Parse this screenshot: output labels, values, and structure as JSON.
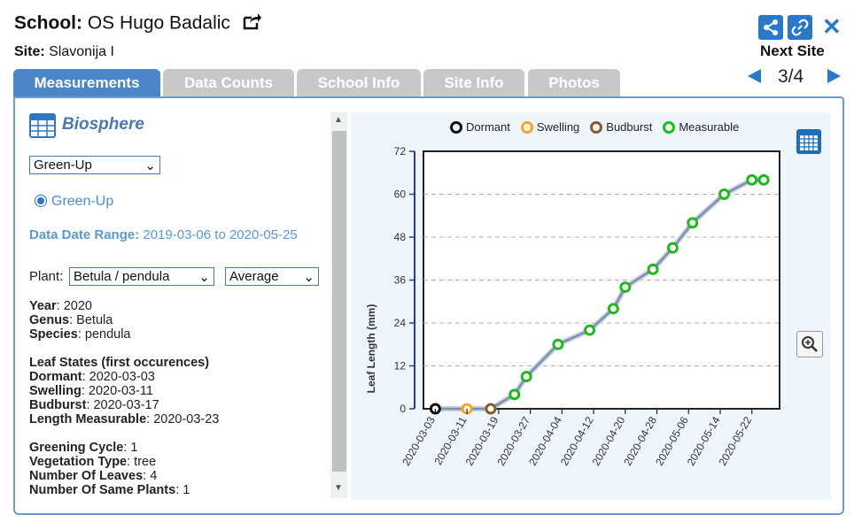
{
  "header": {
    "school_label": "School:",
    "school_name": "OS Hugo Badalic",
    "site_label": "Site:",
    "site_name": "Slavonija I",
    "next_site_label": "Next Site",
    "pager": "3/4"
  },
  "icons": {
    "share": "share-icon",
    "link": "link-icon",
    "close": "close-icon",
    "external": "external-link-icon",
    "table": "table-icon",
    "zoom": "zoom-in-icon"
  },
  "colors": {
    "accent": "#2a78c8",
    "tab_active": "#4a86c8",
    "tab_inactive": "#c8c8c8",
    "measurable": "#1fb81f",
    "swelling": "#f5a623",
    "budburst": "#8b5a2b",
    "dormant": "#111111",
    "line": "#7d91ad"
  },
  "tabs": [
    {
      "label": "Measurements",
      "active": true
    },
    {
      "label": "Data Counts",
      "active": false
    },
    {
      "label": "School Info",
      "active": false
    },
    {
      "label": "Site Info",
      "active": false
    },
    {
      "label": "Photos",
      "active": false
    }
  ],
  "left": {
    "section_title": "Biosphere",
    "protocol_select": "Green-Up",
    "radio_label": "Green-Up",
    "date_range_label": "Data Date Range:",
    "date_range_value": "2019-03-06 to 2020-05-25",
    "plant_label": "Plant:",
    "plant_select": "Betula / pendula",
    "agg_select": "Average",
    "year_label": "Year",
    "year_value": ": 2020",
    "genus_label": "Genus",
    "genus_value": ": Betula",
    "species_label": "Species",
    "species_value": ": pendula",
    "leaf_states_title": "Leaf States (first occurences)",
    "dormant_label": "Dormant",
    "dormant_value": ": 2020-03-03",
    "swelling_label": "Swelling",
    "swelling_value": ": 2020-03-11",
    "budburst_label": "Budburst",
    "budburst_value": ": 2020-03-17",
    "measurable_label": "Length Measurable",
    "measurable_value": ": 2020-03-23",
    "cycle_label": "Greening Cycle",
    "cycle_value": ": 1",
    "vegtype_label": "Vegetation Type",
    "vegtype_value": ": tree",
    "leaves_label": "Number Of Leaves",
    "leaves_value": ": 4",
    "same_label": "Number Of Same Plants",
    "same_value": ": 1"
  },
  "chart_data": {
    "type": "line",
    "ylabel": "Leaf Length (mm)",
    "ylim": [
      0,
      72
    ],
    "yticks": [
      0,
      12,
      24,
      36,
      48,
      60,
      72
    ],
    "xlim": [
      "2020-02-29",
      "2020-05-29"
    ],
    "xticks": [
      "2020-03-03",
      "2020-03-11",
      "2020-03-19",
      "2020-03-27",
      "2020-04-04",
      "2020-04-12",
      "2020-04-20",
      "2020-04-28",
      "2020-05-06",
      "2020-05-14",
      "2020-05-22"
    ],
    "grid": true,
    "legend": {
      "position": "top",
      "entries": [
        "Dormant",
        "Swelling",
        "Budburst",
        "Measurable"
      ]
    },
    "series": [
      {
        "name": "Dormant",
        "color": "#111111",
        "points": [
          {
            "x": "2020-03-03",
            "y": 0
          }
        ]
      },
      {
        "name": "Swelling",
        "color": "#f5a623",
        "points": [
          {
            "x": "2020-03-11",
            "y": 0
          }
        ]
      },
      {
        "name": "Budburst",
        "color": "#8b5a2b",
        "points": [
          {
            "x": "2020-03-17",
            "y": 0
          }
        ]
      },
      {
        "name": "Measurable",
        "color": "#1fb81f",
        "points": [
          {
            "x": "2020-03-23",
            "y": 4
          },
          {
            "x": "2020-03-26",
            "y": 9
          },
          {
            "x": "2020-04-03",
            "y": 18
          },
          {
            "x": "2020-04-11",
            "y": 22
          },
          {
            "x": "2020-04-17",
            "y": 28
          },
          {
            "x": "2020-04-20",
            "y": 34
          },
          {
            "x": "2020-04-27",
            "y": 39
          },
          {
            "x": "2020-05-02",
            "y": 45
          },
          {
            "x": "2020-05-07",
            "y": 52
          },
          {
            "x": "2020-05-15",
            "y": 60
          },
          {
            "x": "2020-05-22",
            "y": 64
          },
          {
            "x": "2020-05-25",
            "y": 64
          }
        ]
      }
    ]
  }
}
